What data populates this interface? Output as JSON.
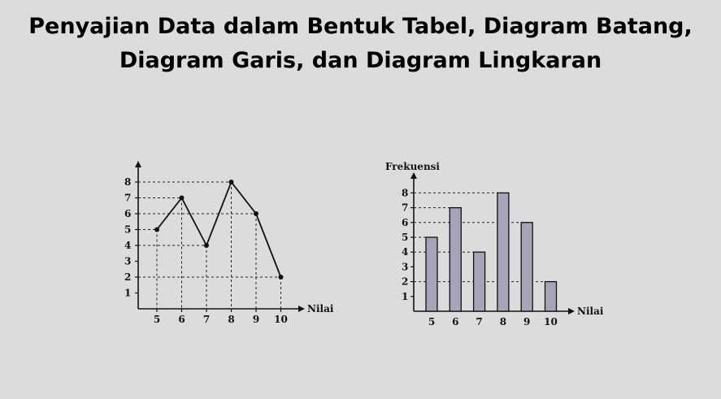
{
  "page": {
    "title_line1": "Penyajian Data dalam Bentuk Tabel, Diagram Batang,",
    "title_line2": "Diagram Garis, dan Diagram Lingkaran"
  },
  "chart_data": [
    {
      "type": "line",
      "xlabel": "Nilai",
      "ylabel": "",
      "x": [
        5,
        6,
        7,
        8,
        9,
        10
      ],
      "values": [
        5,
        7,
        4,
        8,
        6,
        2
      ],
      "yticks": [
        1,
        2,
        3,
        4,
        5,
        6,
        7,
        8
      ],
      "ylim": [
        0,
        8
      ],
      "grid": "dashed guide lines to each point",
      "line_color": "#111111"
    },
    {
      "type": "bar",
      "xlabel": "Nilai",
      "ylabel": "Frekuensi",
      "categories": [
        "5",
        "6",
        "7",
        "8",
        "9",
        "10"
      ],
      "values": [
        5,
        7,
        4,
        8,
        6,
        2
      ],
      "yticks": [
        1,
        2,
        3,
        4,
        5,
        6,
        7,
        8
      ],
      "ylim": [
        0,
        8
      ],
      "grid": "dashed guide lines to bar tops",
      "bar_color": "#a6a4b6"
    }
  ]
}
